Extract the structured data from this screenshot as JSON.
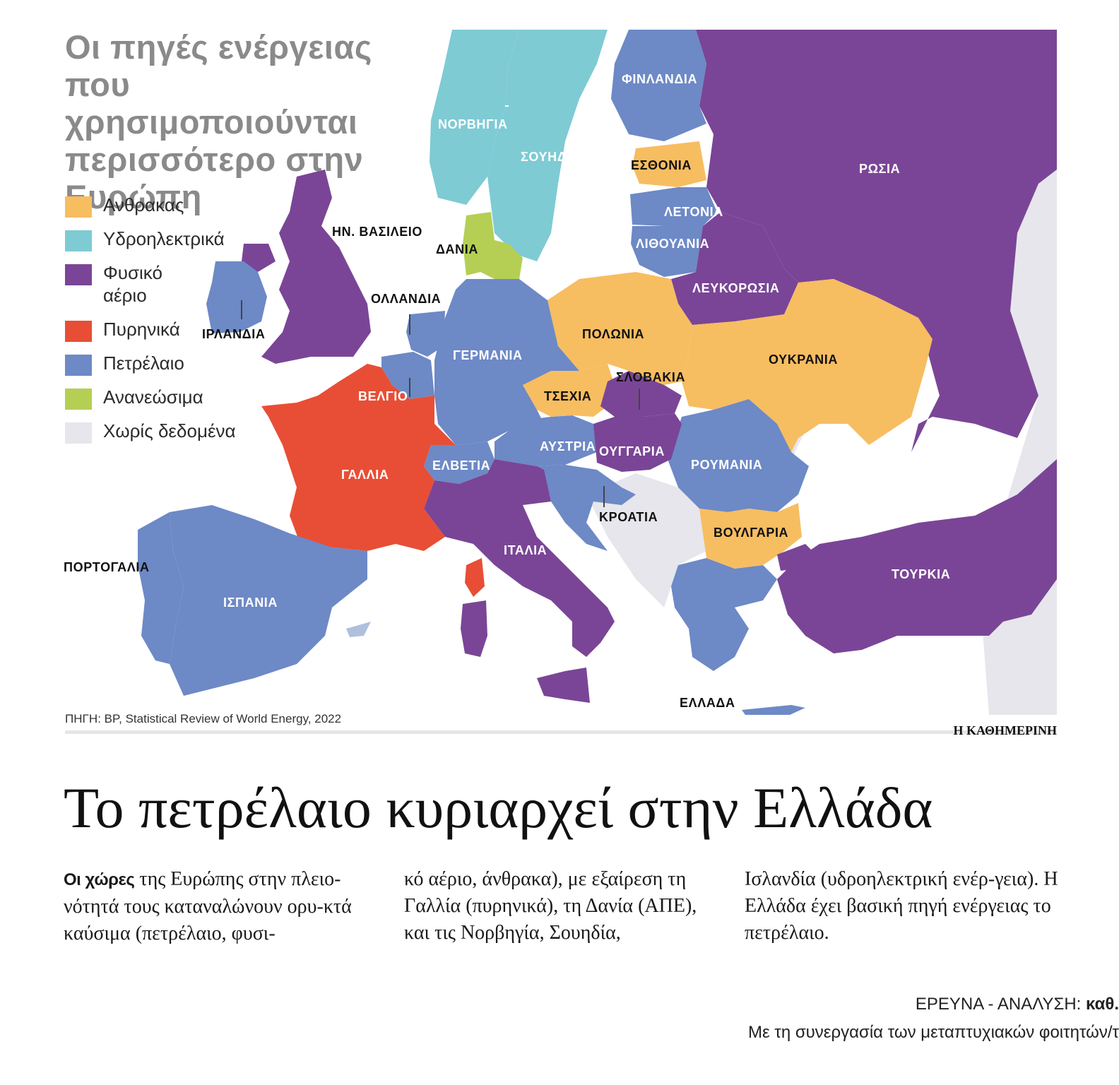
{
  "title": "Οι πηγές ενέργειας που χρησιμοποιούνται περισσότερο στην Ευρώπη",
  "legend": [
    {
      "label": "Ανθρακας",
      "color": "#F7BD61"
    },
    {
      "label": "Υδροηλεκτρικά",
      "color": "#7ECBD4"
    },
    {
      "label": "Φυσικό αέριο",
      "color": "#7A4596"
    },
    {
      "label": "Πυρηνικά",
      "color": "#E84E35"
    },
    {
      "label": "Πετρέλαιο",
      "color": "#6D89C6"
    },
    {
      "label": "Ανανεώσιμα",
      "color": "#B5CF55"
    },
    {
      "label": "Χωρίς δεδομένα",
      "color": "#E6E6EC"
    }
  ],
  "countries": [
    {
      "name": "ΝΟΡΒΗΓΙΑ",
      "source": "Υδροηλεκτρικά"
    },
    {
      "name": "ΣΟΥΗΔΙΑ",
      "source": "Υδροηλεκτρικά"
    },
    {
      "name": "ΦΙΝΛΑΝΔΙΑ",
      "source": "Πετρέλαιο"
    },
    {
      "name": "ΡΩΣΙΑ",
      "source": "Φυσικό αέριο"
    },
    {
      "name": "ΕΣΘΟΝΙΑ",
      "source": "Ανθρακας"
    },
    {
      "name": "ΛΕΤΟΝΙΑ",
      "source": "Πετρέλαιο"
    },
    {
      "name": "ΛΙΘΟΥΑΝΙΑ",
      "source": "Πετρέλαιο"
    },
    {
      "name": "ΛΕΥΚΟΡΩΣΙΑ",
      "source": "Φυσικό αέριο"
    },
    {
      "name": "ΗΝ. ΒΑΣΙΛΕΙΟ",
      "source": "Φυσικό αέριο"
    },
    {
      "name": "ΙΡΛΑΝΔΙΑ",
      "source": "Πετρέλαιο"
    },
    {
      "name": "ΔΑΝΙΑ",
      "source": "Ανανεώσιμα"
    },
    {
      "name": "ΟΛΛΑΝΔΙΑ",
      "source": "Πετρέλαιο"
    },
    {
      "name": "ΓΕΡΜΑΝΙΑ",
      "source": "Πετρέλαιο"
    },
    {
      "name": "ΠΟΛΩΝΙΑ",
      "source": "Ανθρακας"
    },
    {
      "name": "ΟΥΚΡΑΝΙΑ",
      "source": "Ανθρακας"
    },
    {
      "name": "ΒΕΛΓΙΟ",
      "source": "Πετρέλαιο"
    },
    {
      "name": "ΤΣΕΧΙΑ",
      "source": "Ανθρακας"
    },
    {
      "name": "ΣΛΟΒΑΚΙΑ",
      "source": "Φυσικό αέριο"
    },
    {
      "name": "ΑΥΣΤΡΙΑ",
      "source": "Πετρέλαιο"
    },
    {
      "name": "ΟΥΓΓΑΡΙΑ",
      "source": "Φυσικό αέριο"
    },
    {
      "name": "ΡΟΥΜΑΝΙΑ",
      "source": "Πετρέλαιο"
    },
    {
      "name": "ΕΛΒΕΤΙΑ",
      "source": "Πετρέλαιο"
    },
    {
      "name": "ΓΑΛΛΙΑ",
      "source": "Πυρηνικά"
    },
    {
      "name": "ΚΡΟΑΤΙΑ",
      "source": "Πετρέλαιο"
    },
    {
      "name": "ΒΟΥΛΓΑΡΙΑ",
      "source": "Ανθρακας"
    },
    {
      "name": "ΙΤΑΛΙΑ",
      "source": "Φυσικό αέριο"
    },
    {
      "name": "ΠΟΡΤΟΓΑΛΙΑ",
      "source": "Πετρέλαιο"
    },
    {
      "name": "ΙΣΠΑΝΙΑ",
      "source": "Πετρέλαιο"
    },
    {
      "name": "ΤΟΥΡΚΙΑ",
      "source": "Φυσικό αέριο"
    },
    {
      "name": "ΕΛΛΑΔΑ",
      "source": "Πετρέλαιο"
    }
  ],
  "source_note": "ΠΗΓΗ: BP, Statistical Review of World Energy, 2022",
  "brand": "Η ΚΑΘΗΜΕΡΙΝΗ",
  "headline": "Το πετρέλαιο κυριαρχεί στην Ελλάδα",
  "body": {
    "lead": "Οι χώρες",
    "col1_rest": " της Ευρώπης στην πλειο-νότητά τους καταναλώνουν ορυ-κτά καύσιμα (πετρέλαιο, φυσι-",
    "col2": "κό αέριο, άνθρακα), με εξαίρεση τη Γαλλία (πυρηνικά), τη Δανία (ΑΠΕ), και τις Νορβηγία, Σουηδία,",
    "col3": "Ισλανδία (υδροηλεκτρική ενέρ-γεια). Η Ελλάδα έχει βασική πηγή ενέργειας το πετρέλαιο."
  },
  "credits": {
    "label": "ΕΡΕΥΝΑ - ΑΝΑΛΥΣΗ: ",
    "name": "καθ.",
    "line2": "Με τη συνεργασία των μεταπτυχιακών φοιτητών/τ"
  }
}
